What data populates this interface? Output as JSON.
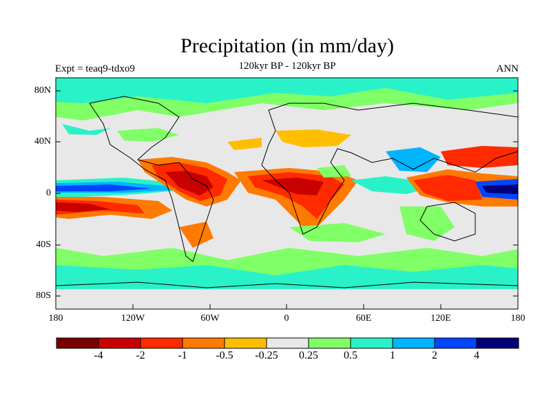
{
  "title": "Precipitation (in mm/day)",
  "subtitle": "120kyr BP - 120kyr BP",
  "left_string": "Expt = teaq9-tdxo9",
  "right_string": "ANN",
  "map": {
    "projection": "cylindrical-equidistant",
    "lon_range": [
      -180,
      180
    ],
    "lat_range": [
      -90,
      90
    ],
    "y_ticks": [
      "80N",
      "40N",
      "0",
      "40S",
      "80S"
    ],
    "x_ticks": [
      "180",
      "120W",
      "60W",
      "0",
      "60E",
      "120E",
      "180"
    ]
  },
  "colorbar": {
    "colors": [
      "#7a0000",
      "#c80000",
      "#ff2a00",
      "#ff7a00",
      "#ffbf00",
      "#e8e8e8",
      "#80ff66",
      "#2af2c8",
      "#00b4ff",
      "#0046ff",
      "#00007a"
    ],
    "labels": [
      "-4",
      "-2",
      "-1",
      "-0.5",
      "-0.25",
      "0.25",
      "0.5",
      "1",
      "2",
      "4"
    ]
  }
}
